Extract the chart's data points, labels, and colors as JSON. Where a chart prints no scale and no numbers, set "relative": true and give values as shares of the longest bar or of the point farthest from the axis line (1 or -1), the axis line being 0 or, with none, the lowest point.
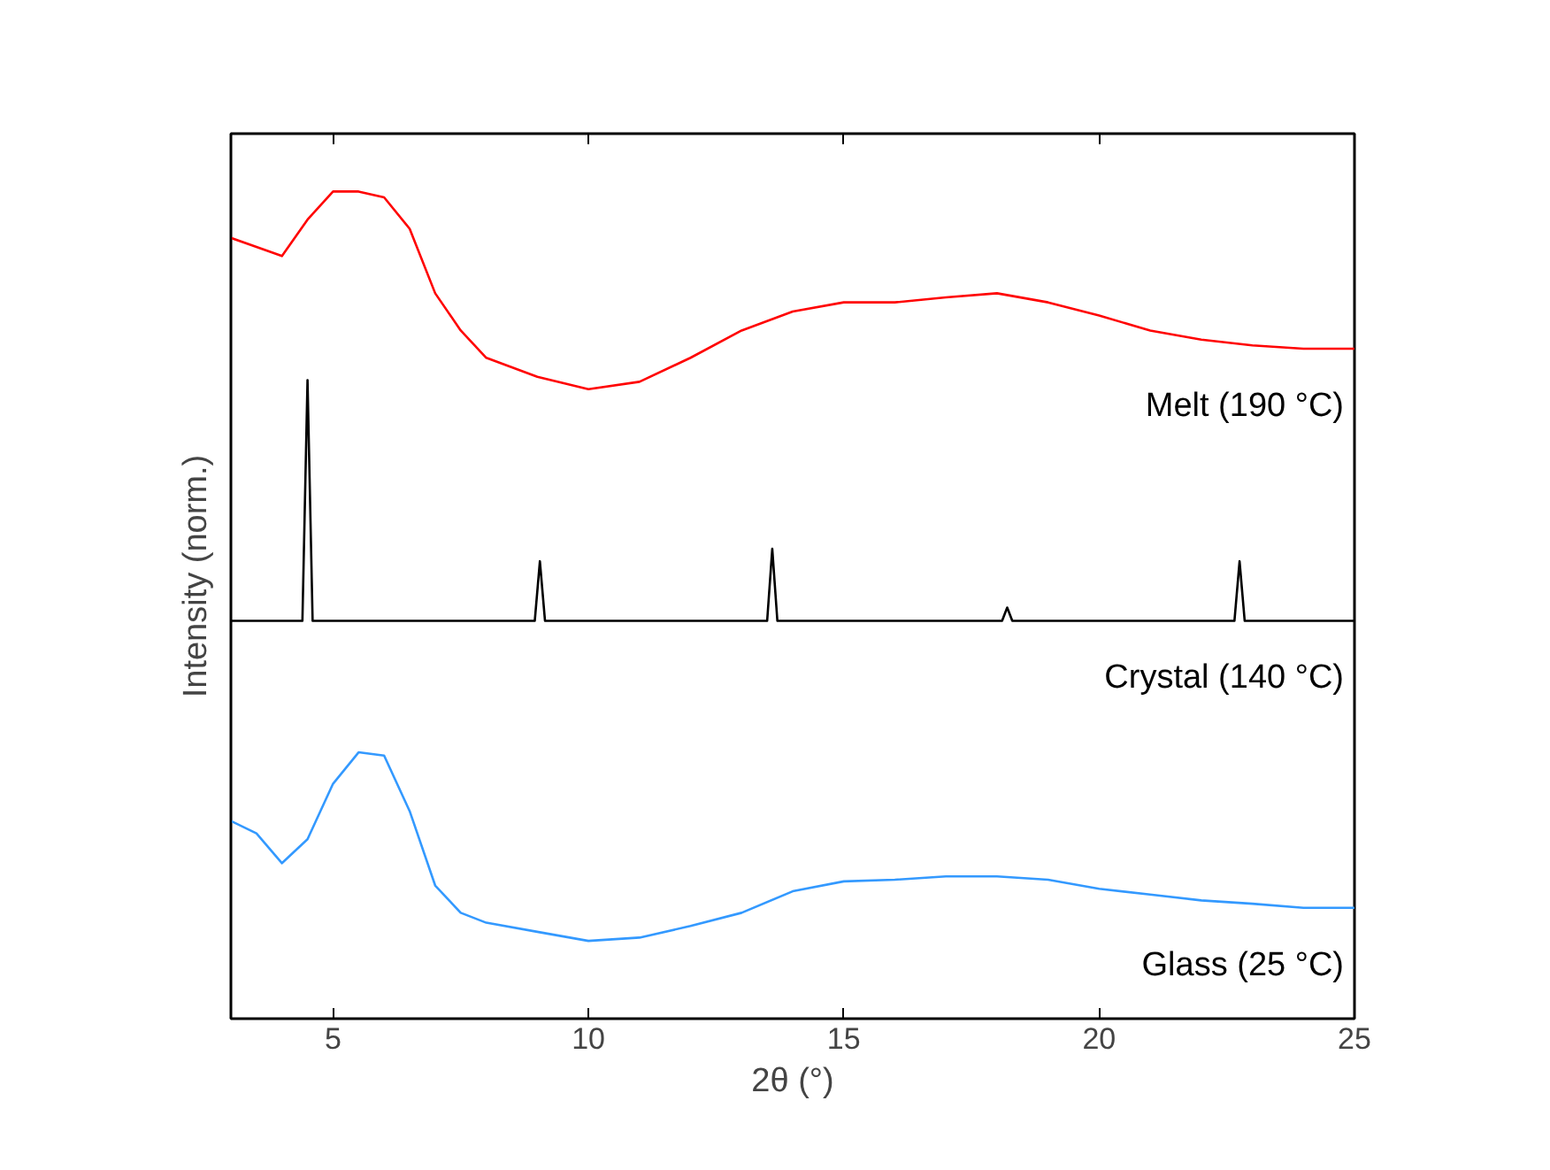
{
  "chart_data": {
    "type": "line",
    "xlabel": "2θ (°)",
    "ylabel": "Intensity (norm.)",
    "relative": true,
    "xlim": [
      3,
      25
    ],
    "xticks": [
      5,
      10,
      15,
      20,
      25
    ],
    "tick_labels": "x",
    "grid": false,
    "legend": false,
    "marker": "none",
    "line_style": "solid",
    "series": [
      {
        "name": "Melt (190 °C)",
        "color": "#ff0000",
        "x": [
          3,
          3.5,
          4,
          4.5,
          5,
          5.5,
          6,
          6.5,
          7,
          7.5,
          8,
          9,
          10,
          11,
          12,
          13,
          14,
          15,
          16,
          17,
          18,
          19,
          20,
          21,
          22,
          23,
          24,
          25
        ],
        "values": [
          0.944,
          0.933,
          0.922,
          0.966,
          1.0,
          1.0,
          0.993,
          0.955,
          0.877,
          0.832,
          0.799,
          0.776,
          0.761,
          0.77,
          0.799,
          0.832,
          0.855,
          0.866,
          0.866,
          0.872,
          0.877,
          0.866,
          0.85,
          0.832,
          0.821,
          0.814,
          0.81,
          0.81
        ]
      },
      {
        "name": "Crystal (140 °C)",
        "color": "#000000",
        "x": [
          3,
          4.4,
          4.5,
          4.6,
          8.95,
          9.05,
          9.15,
          13.5,
          13.6,
          13.7,
          18.1,
          18.2,
          18.3,
          22.65,
          22.75,
          22.85,
          25
        ],
        "values": [
          0.481,
          0.481,
          0.772,
          0.481,
          0.481,
          0.553,
          0.481,
          0.481,
          0.568,
          0.481,
          0.481,
          0.497,
          0.481,
          0.481,
          0.553,
          0.481,
          0.481
        ]
      },
      {
        "name": "Glass (25 °C)",
        "color": "#3399ff",
        "x": [
          3,
          3.5,
          4,
          4.5,
          5,
          5.5,
          6,
          6.5,
          7,
          7.5,
          8,
          9,
          10,
          11,
          12,
          13,
          14,
          15,
          16,
          17,
          18,
          19,
          20,
          21,
          22,
          23,
          24,
          25
        ],
        "values": [
          0.239,
          0.224,
          0.188,
          0.217,
          0.284,
          0.322,
          0.318,
          0.251,
          0.161,
          0.128,
          0.116,
          0.105,
          0.094,
          0.098,
          0.112,
          0.128,
          0.154,
          0.166,
          0.168,
          0.172,
          0.172,
          0.168,
          0.157,
          0.15,
          0.143,
          0.139,
          0.134,
          0.134
        ]
      }
    ]
  }
}
